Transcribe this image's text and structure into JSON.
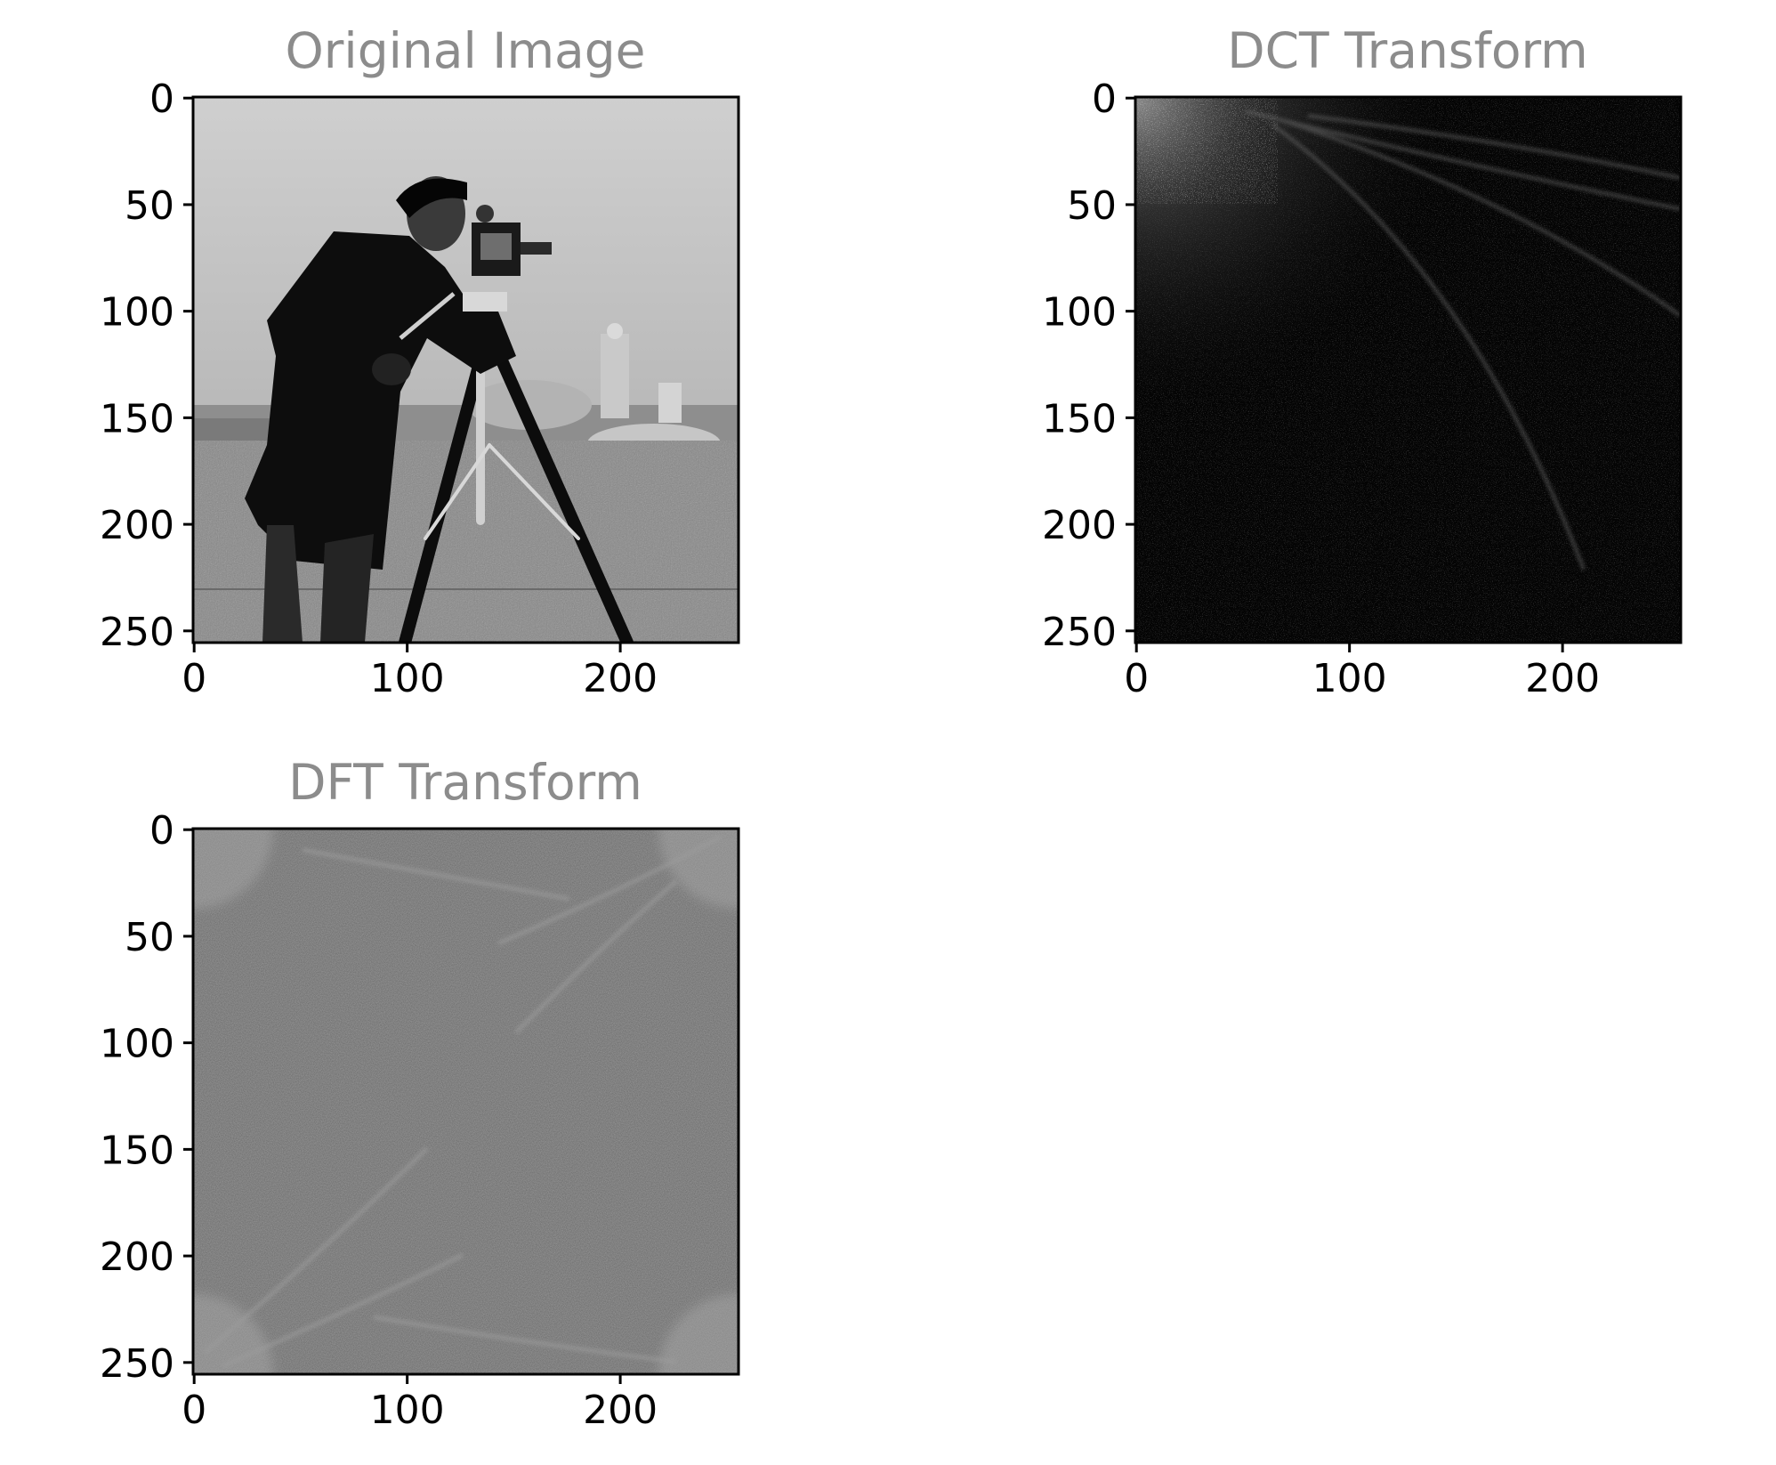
{
  "chart_data": [
    {
      "type": "heatmap",
      "title": "Original Image",
      "colormap": "gray",
      "description_note": "",
      "xlim": [
        0,
        255
      ],
      "ylim": [
        255,
        0
      ],
      "xticks": [
        0,
        100,
        200
      ],
      "yticks": [
        0,
        50,
        100,
        150,
        200,
        250
      ],
      "xlabel": "",
      "ylabel": "",
      "grid": false
    },
    {
      "type": "heatmap",
      "title": "DCT Transform",
      "colormap": "gray",
      "xlim": [
        0,
        255
      ],
      "ylim": [
        255,
        0
      ],
      "xticks": [
        0,
        100,
        200
      ],
      "yticks": [
        0,
        50,
        100,
        150,
        200,
        250
      ],
      "xlabel": "",
      "ylabel": "",
      "grid": false
    },
    {
      "type": "heatmap",
      "title": "DFT Transform",
      "colormap": "gray",
      "xlim": [
        0,
        255
      ],
      "ylim": [
        255,
        0
      ],
      "xticks": [
        0,
        100,
        200
      ],
      "yticks": [
        0,
        50,
        100,
        150,
        200,
        250
      ],
      "xlabel": "",
      "ylabel": "",
      "grid": false
    }
  ],
  "style": {
    "title_color": "#8c8c8c",
    "tick_color": "#000000",
    "axes_color": "#000000",
    "background": "#ffffff"
  }
}
